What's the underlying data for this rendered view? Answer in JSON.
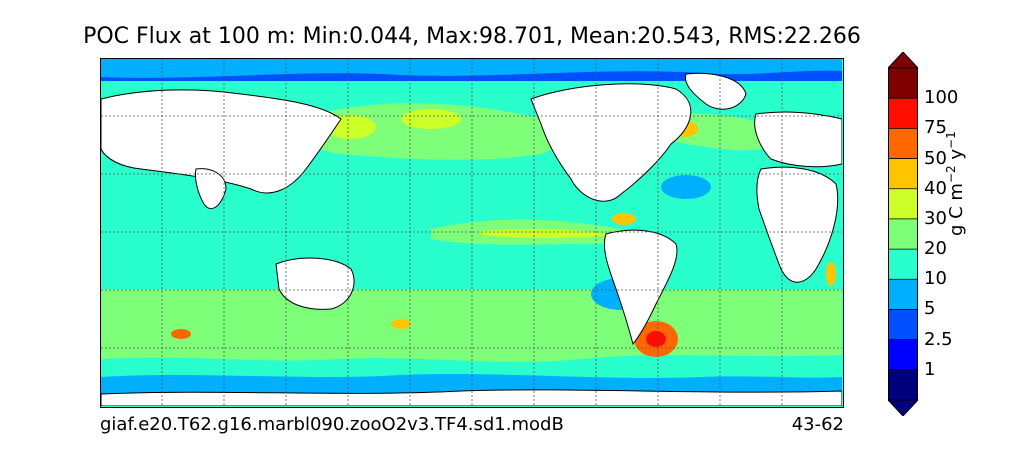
{
  "title": "POC Flux at 100 m: Min:0.044, Max:98.701, Mean:20.543, RMS:22.266",
  "footer": {
    "case_name": "giaf.e20.T62.g16.marbl090.zooO2v3.TF4.sd1.modB",
    "years": "43-62"
  },
  "colorbar": {
    "label_text": "g C m",
    "label_exp1": "−2",
    "label_mid": " y",
    "label_exp2": "−1",
    "ticks": [
      "1",
      "2.5",
      "5",
      "10",
      "20",
      "30",
      "40",
      "50",
      "75",
      "100"
    ],
    "colors": [
      "#00007f",
      "#0000ff",
      "#0050ff",
      "#00b0ff",
      "#29ffcd",
      "#7dff7a",
      "#cdff29",
      "#ffc400",
      "#ff6800",
      "#ff0e00",
      "#7f0000"
    ]
  }
}
